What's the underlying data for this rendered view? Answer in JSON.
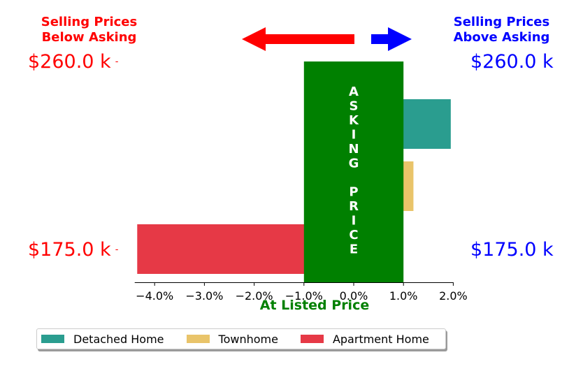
{
  "header": {
    "left_line1": "Selling Prices",
    "left_line2": "Below Asking",
    "right_line1": "Selling Prices",
    "right_line2": "Above Asking",
    "left_color": "#ff0000",
    "right_color": "#0000ff"
  },
  "price_labels": {
    "left_top": "$260.0 k",
    "left_bottom": "$175.0 k",
    "right_top": "$260.0 k",
    "right_bottom": "$175.0 k"
  },
  "center_band": {
    "label_letters": [
      "A",
      "S",
      "K",
      "I",
      "N",
      "G",
      "",
      "P",
      "R",
      "I",
      "C",
      "E"
    ],
    "color": "#008000",
    "x_range": [
      -1.0,
      1.0
    ]
  },
  "chart_data": {
    "type": "bar",
    "orientation": "horizontal",
    "x_unit": "%",
    "xlim": [
      -4.4,
      2.2
    ],
    "xticks": [
      -4.0,
      -3.0,
      -2.0,
      -1.0,
      0.0,
      1.0,
      2.0
    ],
    "xtick_labels": [
      "−4.0%",
      "−3.0%",
      "−2.0%",
      "−1.0%",
      "0.0%",
      "1.0%",
      "2.0%"
    ],
    "xlabel": "At Listed Price",
    "categories": [
      "Detached Home",
      "Townhome",
      "Apartment Home"
    ],
    "values": [
      1.95,
      1.2,
      -4.35
    ],
    "colors": [
      "#2a9d8f",
      "#e9c46a",
      "#e63946"
    ],
    "legend_position": "bottom"
  }
}
